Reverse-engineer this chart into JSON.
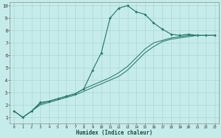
{
  "xlabel": "Humidex (Indice chaleur)",
  "ylabel": "",
  "background_color": "#c5ecea",
  "grid_color": "#aad4d1",
  "line_color": "#2a7a6a",
  "xlim": [
    -0.5,
    23.5
  ],
  "ylim": [
    0.5,
    10.3
  ],
  "xticks": [
    0,
    1,
    2,
    3,
    4,
    5,
    6,
    7,
    8,
    9,
    10,
    11,
    12,
    13,
    14,
    15,
    16,
    17,
    18,
    19,
    20,
    21,
    22,
    23
  ],
  "yticks": [
    1,
    2,
    3,
    4,
    5,
    6,
    7,
    8,
    9,
    10
  ],
  "series": [
    {
      "x": [
        0,
        1,
        2,
        3,
        4,
        5,
        6,
        7,
        8,
        9,
        10,
        11,
        12,
        13,
        14,
        15,
        16,
        17,
        18,
        19,
        20,
        21,
        22,
        23
      ],
      "y": [
        1.5,
        1.0,
        1.5,
        2.2,
        2.3,
        2.5,
        2.7,
        2.9,
        3.3,
        4.8,
        6.2,
        9.0,
        9.8,
        10.0,
        9.5,
        9.3,
        8.6,
        8.1,
        7.7,
        7.6,
        7.7,
        7.6,
        7.6,
        7.6
      ],
      "marker": "D",
      "markersize": 1.8,
      "linewidth": 0.9
    },
    {
      "x": [
        0,
        1,
        2,
        3,
        4,
        5,
        6,
        7,
        8,
        9,
        10,
        11,
        12,
        13,
        14,
        15,
        16,
        17,
        18,
        19,
        20,
        21,
        22,
        23
      ],
      "y": [
        1.5,
        1.0,
        1.5,
        2.0,
        2.2,
        2.4,
        2.6,
        2.8,
        3.1,
        3.4,
        3.7,
        4.0,
        4.3,
        4.8,
        5.5,
        6.2,
        6.7,
        7.1,
        7.3,
        7.4,
        7.5,
        7.6,
        7.6,
        7.6
      ],
      "marker": null,
      "markersize": 0,
      "linewidth": 0.8
    },
    {
      "x": [
        0,
        1,
        2,
        3,
        4,
        5,
        6,
        7,
        8,
        9,
        10,
        11,
        12,
        13,
        14,
        15,
        16,
        17,
        18,
        19,
        20,
        21,
        22,
        23
      ],
      "y": [
        1.5,
        1.0,
        1.5,
        2.1,
        2.3,
        2.5,
        2.7,
        2.9,
        3.3,
        3.6,
        3.9,
        4.2,
        4.6,
        5.1,
        5.8,
        6.5,
        7.0,
        7.2,
        7.4,
        7.5,
        7.6,
        7.6,
        7.6,
        7.6
      ],
      "marker": null,
      "markersize": 0,
      "linewidth": 0.8
    }
  ]
}
